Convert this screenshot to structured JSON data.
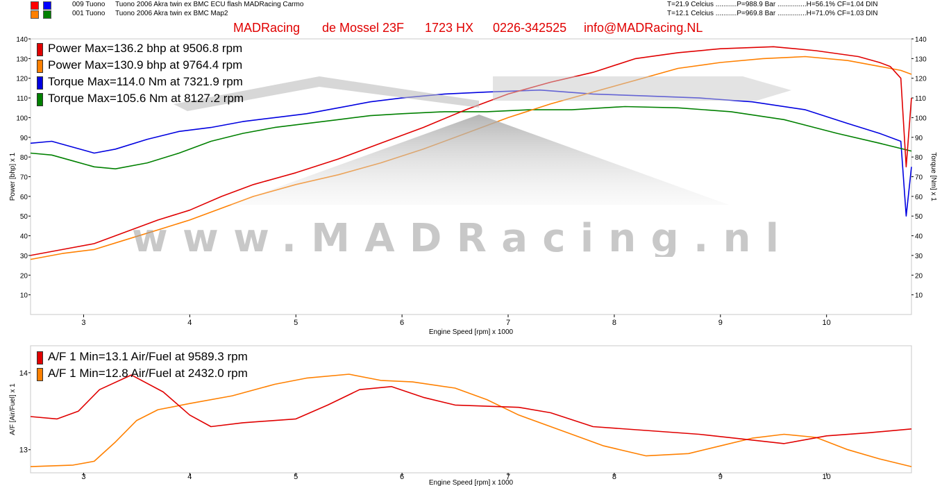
{
  "header": {
    "runs": [
      {
        "id": "009 Tuono",
        "name": "Tuono 2006 Akra twin ex BMC ECU flash MADRacing Carmo",
        "colors": [
          "#ff0000",
          "#0000ff"
        ],
        "conditions": "T=21.9 Celcius ...........P=988.9 Bar ...............H=56.1% CF=1.04 DIN"
      },
      {
        "id": "001 Tuono",
        "name": "Tuono 2006 Akra twin ex BMC Map2",
        "colors": [
          "#ff8000",
          "#008000"
        ],
        "conditions": "T=12.1 Celcius ...........P=969.8 Bar ...............H=71.0% CF=1.03 DIN"
      }
    ],
    "company": [
      "MADRacing",
      "de Mossel 23F",
      "1723 HX",
      "0226-342525",
      "info@MADRacing.NL"
    ]
  },
  "watermark": {
    "text": "www.MADRacing.nl"
  },
  "chart_data": [
    {
      "type": "line",
      "xlabel": "Engine Speed [rpm] x 1000",
      "ylabel_left": "Power [bhp] x 1",
      "ylabel_right": "Torque [Nm] x 1",
      "xlim": [
        2.5,
        10.8
      ],
      "ylim_left": [
        0,
        140
      ],
      "ylim_right": [
        0,
        140
      ],
      "x_ticks": [
        3,
        4,
        5,
        6,
        7,
        8,
        9,
        10
      ],
      "y_ticks_left": [
        10,
        20,
        30,
        40,
        50,
        60,
        70,
        80,
        90,
        100,
        110,
        120,
        130,
        140
      ],
      "y_ticks_right": [
        10,
        20,
        30,
        40,
        50,
        60,
        70,
        80,
        90,
        100,
        110,
        120,
        130,
        140
      ],
      "grid": false,
      "legend_position": "top-left",
      "series": [
        {
          "name": "Power",
          "label": "Power  Max=136.2 bhp at 9506.8 rpm",
          "color": "#e00000",
          "axis": "left",
          "x": [
            2.5,
            2.8,
            3.1,
            3.4,
            3.7,
            4.0,
            4.3,
            4.6,
            5.0,
            5.4,
            5.8,
            6.2,
            6.6,
            7.0,
            7.4,
            7.8,
            8.2,
            8.6,
            9.0,
            9.5,
            9.9,
            10.3,
            10.5,
            10.6,
            10.7,
            10.75,
            10.8
          ],
          "y": [
            30,
            33,
            36,
            42,
            48,
            53,
            60,
            66,
            72,
            79,
            87,
            95,
            104,
            112,
            118,
            123,
            130,
            133,
            135,
            136,
            134,
            131,
            128,
            126,
            120,
            75,
            110
          ]
        },
        {
          "name": "Power",
          "label": "Power  Max=130.9 bhp at 9764.4 rpm",
          "color": "#ff8000",
          "axis": "left",
          "x": [
            2.5,
            2.8,
            3.1,
            3.4,
            3.7,
            4.0,
            4.3,
            4.6,
            5.0,
            5.4,
            5.8,
            6.2,
            6.6,
            7.0,
            7.4,
            7.8,
            8.2,
            8.6,
            9.0,
            9.4,
            9.8,
            10.2,
            10.5,
            10.7,
            10.8
          ],
          "y": [
            28,
            31,
            33,
            38,
            43,
            48,
            54,
            60,
            66,
            71,
            77,
            84,
            92,
            100,
            107,
            113,
            119,
            125,
            128,
            130,
            131,
            129,
            126,
            124,
            122
          ]
        },
        {
          "name": "Torque",
          "label": "Torque  Max=114.0 Nm at 7321.9 rpm",
          "color": "#0000e0",
          "axis": "right",
          "x": [
            2.5,
            2.7,
            2.9,
            3.1,
            3.3,
            3.6,
            3.9,
            4.2,
            4.5,
            4.8,
            5.1,
            5.4,
            5.7,
            6.0,
            6.4,
            6.8,
            7.3,
            7.8,
            8.3,
            8.8,
            9.3,
            9.8,
            10.2,
            10.5,
            10.7,
            10.75,
            10.8
          ],
          "y": [
            87,
            88,
            85,
            82,
            84,
            89,
            93,
            95,
            98,
            100,
            102,
            105,
            108,
            110,
            112,
            113,
            114,
            112,
            111,
            110,
            108,
            104,
            97,
            92,
            88,
            50,
            75
          ]
        },
        {
          "name": "Torque",
          "label": "Torque  Max=105.6 Nm at 8127.2 rpm",
          "color": "#008000",
          "axis": "right",
          "x": [
            2.5,
            2.7,
            2.9,
            3.1,
            3.3,
            3.6,
            3.9,
            4.2,
            4.5,
            4.8,
            5.1,
            5.4,
            5.7,
            6.0,
            6.4,
            6.8,
            7.2,
            7.6,
            8.1,
            8.6,
            9.1,
            9.6,
            10.1,
            10.5,
            10.8
          ],
          "y": [
            82,
            81,
            78,
            75,
            74,
            77,
            82,
            88,
            92,
            95,
            97,
            99,
            101,
            102,
            103,
            103,
            104,
            104,
            105.6,
            105,
            103,
            99,
            92,
            87,
            83
          ]
        }
      ]
    },
    {
      "type": "line",
      "xlabel": "Engine Speed [rpm] x 1000",
      "ylabel": "A/F [Air/Fuel] x 1",
      "xlim": [
        2.5,
        10.8
      ],
      "ylim": [
        12.7,
        14.35
      ],
      "x_ticks": [
        3,
        4,
        5,
        6,
        7,
        8,
        9,
        10
      ],
      "y_ticks": [
        13,
        14
      ],
      "grid": false,
      "legend_position": "top-left",
      "series": [
        {
          "name": "A/F 1",
          "label": "A/F 1  Min=13.1 Air/Fuel at 9589.3 rpm",
          "color": "#e00000",
          "x": [
            2.5,
            2.75,
            2.95,
            3.15,
            3.45,
            3.75,
            4.0,
            4.2,
            4.5,
            5.0,
            5.3,
            5.6,
            5.9,
            6.2,
            6.5,
            7.1,
            7.4,
            7.8,
            8.3,
            8.8,
            9.2,
            9.6,
            10.0,
            10.4,
            10.8
          ],
          "y": [
            13.43,
            13.4,
            13.5,
            13.78,
            13.97,
            13.75,
            13.45,
            13.3,
            13.35,
            13.4,
            13.58,
            13.78,
            13.82,
            13.68,
            13.58,
            13.55,
            13.48,
            13.3,
            13.25,
            13.2,
            13.14,
            13.08,
            13.18,
            13.22,
            13.27
          ]
        },
        {
          "name": "A/F 1",
          "label": "A/F 1  Min=12.8 Air/Fuel at 2432.0 rpm",
          "color": "#ff8000",
          "x": [
            2.5,
            2.9,
            3.1,
            3.3,
            3.5,
            3.7,
            4.0,
            4.4,
            4.8,
            5.1,
            5.5,
            5.8,
            6.1,
            6.5,
            6.8,
            7.1,
            7.5,
            7.9,
            8.3,
            8.7,
            9.0,
            9.3,
            9.6,
            9.9,
            10.2,
            10.5,
            10.8
          ],
          "y": [
            12.78,
            12.8,
            12.85,
            13.1,
            13.38,
            13.52,
            13.6,
            13.7,
            13.85,
            13.93,
            13.98,
            13.9,
            13.88,
            13.8,
            13.65,
            13.45,
            13.25,
            13.05,
            12.92,
            12.95,
            13.05,
            13.15,
            13.2,
            13.16,
            13.0,
            12.88,
            12.78
          ]
        }
      ]
    }
  ]
}
